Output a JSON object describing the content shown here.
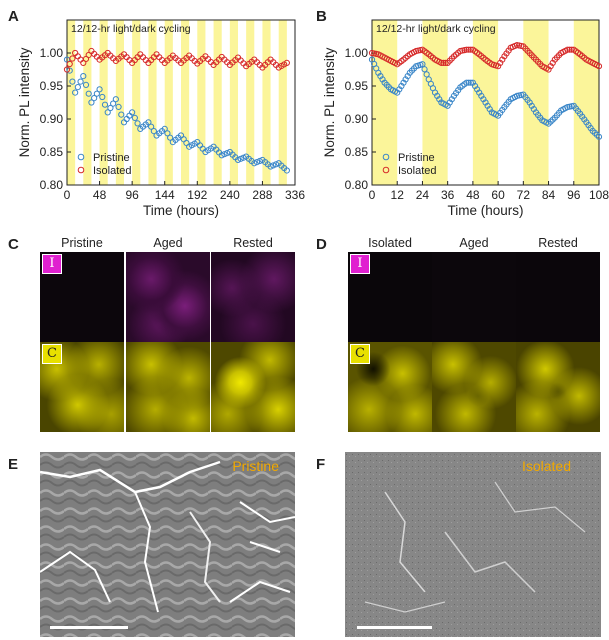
{
  "panels": {
    "a": "A",
    "b": "B",
    "c": "C",
    "d": "D",
    "e": "E",
    "f": "F"
  },
  "colors": {
    "pristine": "#3a86c8",
    "isolated": "#d62a2a",
    "light_band": "#fbf59a",
    "magenta_label": "#e020d0",
    "yellow_label": "#e8e000",
    "sem_label": "#f2a900"
  },
  "chart_data": [
    {
      "type": "scatter",
      "id": "A",
      "annotation": "12/12-hr light/dark cycling",
      "xlabel": "Time (hours)",
      "ylabel": "Norm. PL intensity",
      "xlim": [
        0,
        336
      ],
      "ylim": [
        0.8,
        1.05
      ],
      "xticks": [
        "0",
        "48",
        "96",
        "144",
        "192",
        "240",
        "288",
        "336"
      ],
      "yticks": [
        "0.80",
        "0.85",
        "0.90",
        "0.95",
        "1.00"
      ],
      "light_period_hours": 24,
      "light_duration_hours": 12,
      "series": [
        {
          "name": "Pristine",
          "marker": "circle-open",
          "trend": "decreasing sawtooth",
          "points": [
            [
              0,
              0.99
            ],
            [
              12,
              0.94
            ],
            [
              24,
              0.965
            ],
            [
              36,
              0.925
            ],
            [
              48,
              0.945
            ],
            [
              60,
              0.91
            ],
            [
              72,
              0.93
            ],
            [
              84,
              0.895
            ],
            [
              96,
              0.91
            ],
            [
              108,
              0.885
            ],
            [
              120,
              0.895
            ],
            [
              132,
              0.875
            ],
            [
              144,
              0.885
            ],
            [
              156,
              0.865
            ],
            [
              168,
              0.875
            ],
            [
              180,
              0.858
            ],
            [
              192,
              0.865
            ],
            [
              204,
              0.85
            ],
            [
              216,
              0.858
            ],
            [
              228,
              0.845
            ],
            [
              240,
              0.85
            ],
            [
              252,
              0.838
            ],
            [
              264,
              0.843
            ],
            [
              276,
              0.833
            ],
            [
              288,
              0.838
            ],
            [
              300,
              0.828
            ],
            [
              312,
              0.833
            ],
            [
              324,
              0.822
            ]
          ]
        },
        {
          "name": "Isolated",
          "marker": "circle-open",
          "trend": "oscillating near 1.0",
          "points": [
            [
              0,
              0.975
            ],
            [
              12,
              1.0
            ],
            [
              24,
              0.985
            ],
            [
              36,
              1.003
            ],
            [
              48,
              0.99
            ],
            [
              60,
              1.0
            ],
            [
              72,
              0.988
            ],
            [
              84,
              0.998
            ],
            [
              96,
              0.985
            ],
            [
              108,
              0.998
            ],
            [
              120,
              0.985
            ],
            [
              132,
              0.998
            ],
            [
              144,
              0.985
            ],
            [
              156,
              0.996
            ],
            [
              168,
              0.985
            ],
            [
              180,
              0.996
            ],
            [
              192,
              0.984
            ],
            [
              204,
              0.995
            ],
            [
              216,
              0.982
            ],
            [
              228,
              0.994
            ],
            [
              240,
              0.982
            ],
            [
              252,
              0.993
            ],
            [
              264,
              0.98
            ],
            [
              276,
              0.99
            ],
            [
              288,
              0.978
            ],
            [
              300,
              0.99
            ],
            [
              312,
              0.978
            ],
            [
              324,
              0.985
            ]
          ]
        }
      ],
      "legend": "bottom-left"
    },
    {
      "type": "scatter",
      "id": "B",
      "annotation": "12/12-hr light/dark cycling",
      "xlabel": "Time (hours)",
      "ylabel": "Norm. PL intensity",
      "xlim": [
        0,
        108
      ],
      "ylim": [
        0.8,
        1.05
      ],
      "xticks": [
        "0",
        "12",
        "24",
        "36",
        "48",
        "60",
        "72",
        "84",
        "96",
        "108"
      ],
      "yticks": [
        "0.80",
        "0.85",
        "0.90",
        "0.95",
        "1.00"
      ],
      "light_period_hours": 24,
      "light_duration_hours": 12,
      "series": [
        {
          "name": "Pristine",
          "marker": "circle-open",
          "points": [
            [
              0,
              0.99
            ],
            [
              3,
              0.97
            ],
            [
              6,
              0.955
            ],
            [
              9,
              0.945
            ],
            [
              12,
              0.94
            ],
            [
              15,
              0.955
            ],
            [
              18,
              0.97
            ],
            [
              21,
              0.98
            ],
            [
              24,
              0.983
            ],
            [
              27,
              0.96
            ],
            [
              30,
              0.94
            ],
            [
              33,
              0.925
            ],
            [
              36,
              0.92
            ],
            [
              39,
              0.935
            ],
            [
              42,
              0.948
            ],
            [
              45,
              0.955
            ],
            [
              48,
              0.955
            ],
            [
              51,
              0.94
            ],
            [
              54,
              0.925
            ],
            [
              57,
              0.91
            ],
            [
              60,
              0.905
            ],
            [
              63,
              0.918
            ],
            [
              66,
              0.93
            ],
            [
              69,
              0.935
            ],
            [
              72,
              0.937
            ],
            [
              75,
              0.925
            ],
            [
              78,
              0.91
            ],
            [
              81,
              0.898
            ],
            [
              84,
              0.893
            ],
            [
              87,
              0.902
            ],
            [
              90,
              0.913
            ],
            [
              93,
              0.918
            ],
            [
              96,
              0.92
            ],
            [
              99,
              0.908
            ],
            [
              102,
              0.895
            ],
            [
              105,
              0.882
            ],
            [
              108,
              0.873
            ]
          ]
        },
        {
          "name": "Isolated",
          "marker": "circle-open",
          "points": [
            [
              0,
              1.0
            ],
            [
              3,
              0.998
            ],
            [
              6,
              0.993
            ],
            [
              9,
              0.988
            ],
            [
              12,
              0.983
            ],
            [
              15,
              0.99
            ],
            [
              18,
              0.998
            ],
            [
              21,
              1.003
            ],
            [
              24,
              1.005
            ],
            [
              27,
              0.998
            ],
            [
              30,
              0.99
            ],
            [
              33,
              0.985
            ],
            [
              36,
              0.985
            ],
            [
              39,
              0.995
            ],
            [
              42,
              1.003
            ],
            [
              45,
              1.005
            ],
            [
              48,
              1.005
            ],
            [
              51,
              0.998
            ],
            [
              54,
              0.99
            ],
            [
              57,
              0.983
            ],
            [
              60,
              0.98
            ],
            [
              63,
              0.995
            ],
            [
              66,
              1.008
            ],
            [
              69,
              1.012
            ],
            [
              72,
              1.01
            ],
            [
              75,
              1.0
            ],
            [
              78,
              0.99
            ],
            [
              81,
              0.98
            ],
            [
              84,
              0.975
            ],
            [
              87,
              0.99
            ],
            [
              90,
              1.0
            ],
            [
              93,
              1.005
            ],
            [
              96,
              1.005
            ],
            [
              99,
              0.998
            ],
            [
              102,
              0.99
            ],
            [
              105,
              0.985
            ],
            [
              108,
              0.98
            ]
          ]
        }
      ],
      "legend": "bottom-left"
    }
  ],
  "maps_c": {
    "headers": [
      "Pristine",
      "Aged",
      "Rested"
    ],
    "row_labels": [
      "I",
      "C"
    ]
  },
  "maps_d": {
    "headers": [
      "Isolated",
      "Aged",
      "Rested"
    ],
    "row_labels": [
      "I",
      "C"
    ]
  },
  "sem": {
    "e_label": "Pristine",
    "f_label": "Isolated"
  }
}
